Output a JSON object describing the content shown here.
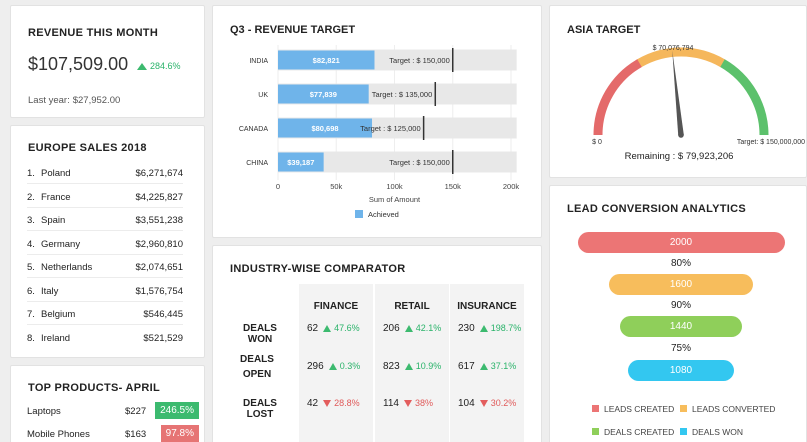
{
  "revenue": {
    "title": "REVENUE THIS MONTH",
    "amount": "$107,509.00",
    "change": "284.6%",
    "last_label": "Last year:",
    "last_value": "$27,952.00"
  },
  "europe": {
    "title": "EUROPE SALES 2018",
    "rows": [
      {
        "rank": "1.",
        "country": "Poland",
        "value": "$6,271,674"
      },
      {
        "rank": "2.",
        "country": "France",
        "value": "$4,225,827"
      },
      {
        "rank": "3.",
        "country": "Spain",
        "value": "$3,551,238"
      },
      {
        "rank": "4.",
        "country": "Germany",
        "value": "$2,960,810"
      },
      {
        "rank": "5.",
        "country": "Netherlands",
        "value": "$2,074,651"
      },
      {
        "rank": "6.",
        "country": "Italy",
        "value": "$1,576,754"
      },
      {
        "rank": "7.",
        "country": "Belgium",
        "value": "$546,445"
      },
      {
        "rank": "8.",
        "country": "Ireland",
        "value": "$521,529"
      }
    ]
  },
  "top_products": {
    "title": "TOP PRODUCTS- APRIL",
    "rows": [
      {
        "name": "Laptops",
        "price": "$227",
        "badge": "246.5%",
        "color": "#3cba6f"
      },
      {
        "name": "Mobile Phones",
        "price": "$163",
        "badge": "97.8%",
        "color": "#e67474"
      }
    ]
  },
  "q3": {
    "title": "Q3 - REVENUE TARGET",
    "legend": "Achieved",
    "colors": {
      "achieved": "#6fb4ea",
      "target_bg": "#e8e8e8",
      "marker": "#333333"
    }
  },
  "chart_data": [
    {
      "type": "bar",
      "orientation": "horizontal",
      "title": "Q3 - REVENUE TARGET",
      "xlabel": "Sum of Amount",
      "xlim": [
        0,
        200000
      ],
      "xticks": [
        "0",
        "50k",
        "100k",
        "150k",
        "200k"
      ],
      "categories": [
        "INDIA",
        "UK",
        "CANADA",
        "CHINA"
      ],
      "series": [
        {
          "name": "Achieved",
          "values": [
            82821,
            77839,
            80698,
            39187
          ],
          "labels": [
            "$82,821",
            "$77,839",
            "$80,698",
            "$39,187"
          ]
        }
      ],
      "targets": [
        150000,
        135000,
        125000,
        150000
      ],
      "target_labels": [
        "Target : $ 150,000",
        "Target : $ 135,000",
        "Target : $ 125,000",
        "Target : $ 150,000"
      ]
    },
    {
      "type": "gauge",
      "title": "ASIA TARGET",
      "value": 70076794,
      "value_label": "$ 70,076,794",
      "min_label": "$ 0",
      "max_label": "Target: $ 150,000,000",
      "min": 0,
      "max": 150000000,
      "remaining_label": "Remaining : $ 79,923,206",
      "band_colors": [
        "#e46a6a",
        "#f5b75c",
        "#5cc16c"
      ]
    },
    {
      "type": "funnel",
      "title": "LEAD CONVERSION ANALYTICS",
      "categories": [
        "LEADS CREATED",
        "LEADS CONVERTED",
        "DEALS CREATED",
        "DEALS WON"
      ],
      "values": [
        2000,
        1600,
        1440,
        1080
      ],
      "labels": [
        "2000",
        "1600",
        "1440",
        "1080"
      ],
      "conversion": [
        "80%",
        "90%",
        "75%"
      ],
      "colors": [
        "#ec7575",
        "#f7bd5c",
        "#8fcf5a",
        "#33c7f0"
      ]
    }
  ],
  "industry": {
    "title": "INDUSTRY-WISE COMPARATOR",
    "columns": [
      "FINANCE",
      "RETAIL",
      "INSURANCE"
    ],
    "rows": [
      {
        "label": "DEALS WON",
        "cells": [
          {
            "num": "62",
            "pct": "47.6%",
            "dir": "up"
          },
          {
            "num": "206",
            "pct": "42.1%",
            "dir": "up"
          },
          {
            "num": "230",
            "pct": "198.7%",
            "dir": "up"
          }
        ]
      },
      {
        "label": "DEALS OPEN",
        "cells": [
          {
            "num": "296",
            "pct": "0.3%",
            "dir": "up"
          },
          {
            "num": "823",
            "pct": "10.9%",
            "dir": "up"
          },
          {
            "num": "617",
            "pct": "37.1%",
            "dir": "up"
          }
        ]
      },
      {
        "label": "DEALS LOST",
        "cells": [
          {
            "num": "42",
            "pct": "28.8%",
            "dir": "down"
          },
          {
            "num": "114",
            "pct": "38%",
            "dir": "down"
          },
          {
            "num": "104",
            "pct": "30.2%",
            "dir": "down"
          }
        ]
      }
    ]
  }
}
